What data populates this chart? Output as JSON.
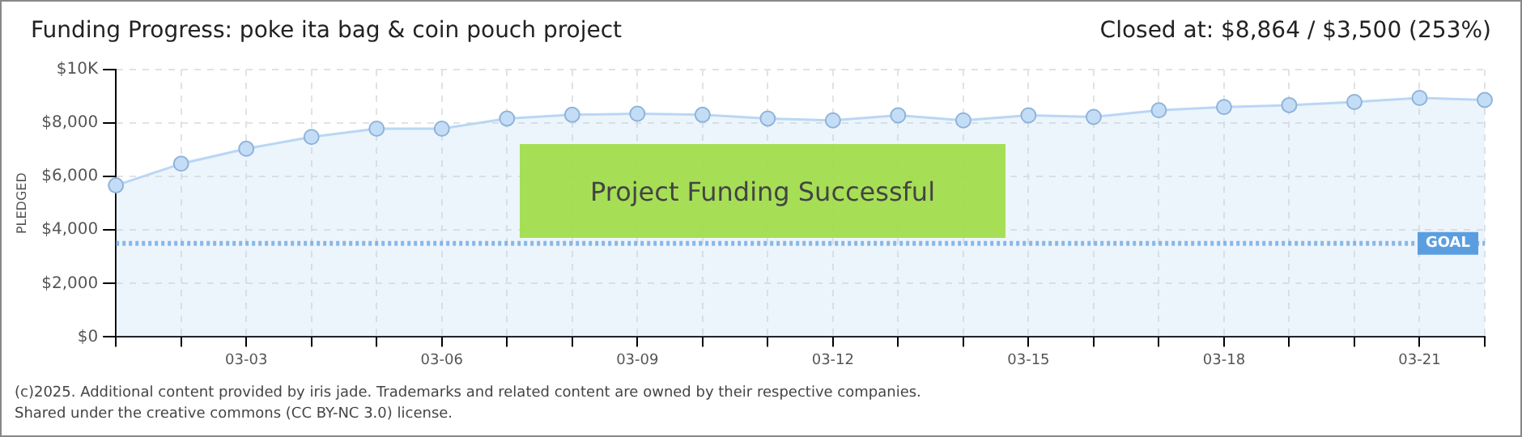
{
  "chart_data": {
    "type": "area",
    "title": "Funding Progress: poke ita bag & coin pouch project",
    "subtitle": "Closed at: $8,864 / $3,500 (253%)",
    "ylabel": "PLEDGED",
    "categories": [
      null,
      null,
      "03-03",
      null,
      null,
      "03-06",
      null,
      null,
      "03-09",
      null,
      null,
      "03-12",
      null,
      null,
      "03-15",
      null,
      null,
      "03-18",
      null,
      null,
      "03-21",
      null
    ],
    "series": [
      {
        "color": "#b9d7f5",
        "values": [
          5670,
          6480,
          7040,
          7480,
          7790,
          7790,
          8170,
          8310,
          8350,
          8310,
          8170,
          8100,
          8290,
          8100,
          8290,
          8230,
          8480,
          8600,
          8670,
          8790,
          8940,
          8864
        ]
      }
    ],
    "ylim": [
      0,
      10000
    ],
    "yticks": [
      {
        "value": 0,
        "label": "$0"
      },
      {
        "value": 2000,
        "label": "$2,000"
      },
      {
        "value": 4000,
        "label": "$4,000"
      },
      {
        "value": 6000,
        "label": "$6,000"
      },
      {
        "value": 8000,
        "label": "$8,000"
      },
      {
        "value": 10000,
        "label": "$10K"
      }
    ],
    "grid": true,
    "legend": false,
    "marker": "circle",
    "line_style": "solid",
    "ref_lines": [
      {
        "axis": "y",
        "value": 3500,
        "label": "GOAL",
        "color": "#5b9ee0",
        "line_style": "dotted"
      }
    ],
    "annotations": [
      "Project Funding Successful",
      "(c)2025. Additional content provided by iris jade. Trademarks and related content are owned by their respective companies.",
      "Shared under the creative commons (CC BY-NC 3.0) license."
    ]
  }
}
